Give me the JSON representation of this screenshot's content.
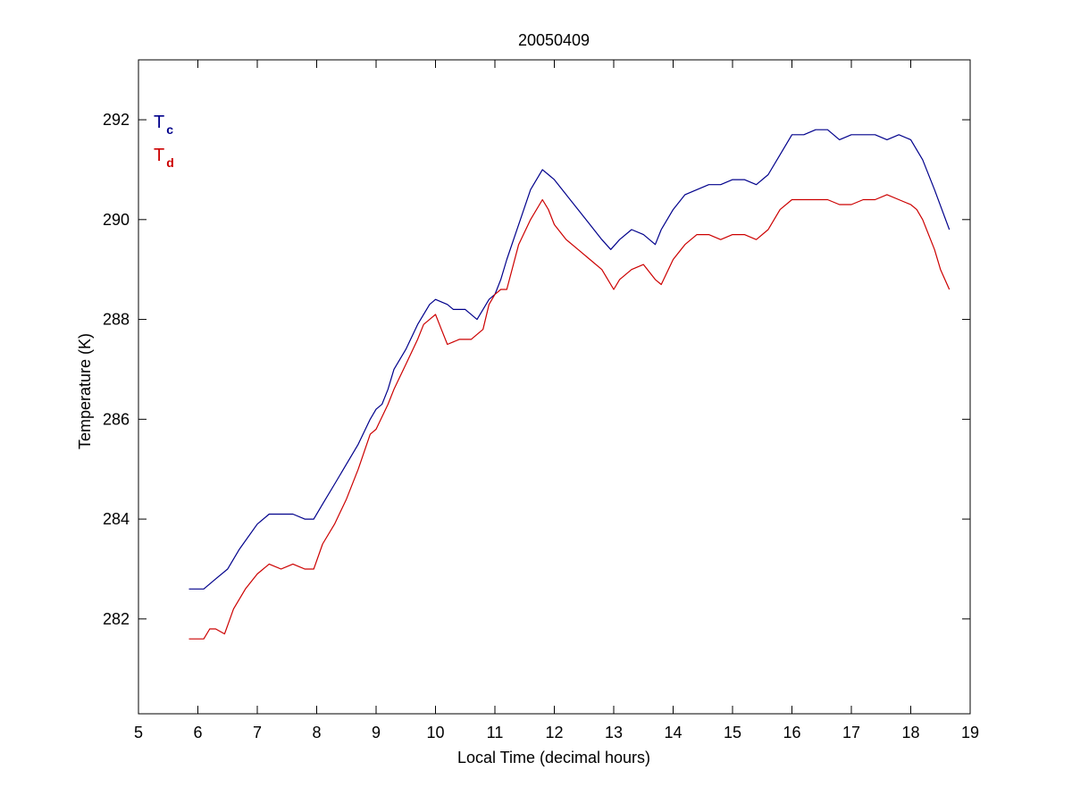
{
  "chart_data": {
    "type": "line",
    "title": "20050409",
    "xlabel": "Local Time (decimal hours)",
    "ylabel": "Temperature (K)",
    "xlim": [
      5,
      19
    ],
    "ylim": [
      280.1,
      293.2
    ],
    "xticks": [
      5,
      6,
      7,
      8,
      9,
      10,
      11,
      12,
      13,
      14,
      15,
      16,
      17,
      18,
      19
    ],
    "xtick_labels": [
      "5",
      "6",
      "7",
      "8",
      "9",
      "10",
      "11",
      "12",
      "13",
      "14",
      "15",
      "16",
      "17",
      "18",
      "19"
    ],
    "yticks": [
      282,
      284,
      286,
      288,
      290,
      292
    ],
    "ytick_labels": [
      "282",
      "284",
      "286",
      "288",
      "290",
      "292"
    ],
    "grid": false,
    "legend_position": "top-left",
    "colors": {
      "axes": "#000000",
      "Tc": "#00008b",
      "Td": "#cc0000"
    },
    "series": [
      {
        "name": "T",
        "subscript": "c",
        "color": "#00008b",
        "x": [
          5.85,
          6.0,
          6.1,
          6.3,
          6.5,
          6.7,
          7.0,
          7.2,
          7.4,
          7.6,
          7.8,
          7.95,
          8.1,
          8.3,
          8.5,
          8.7,
          8.9,
          9.0,
          9.1,
          9.2,
          9.3,
          9.5,
          9.7,
          9.9,
          10.0,
          10.2,
          10.3,
          10.5,
          10.7,
          10.8,
          10.9,
          11.0,
          11.1,
          11.2,
          11.4,
          11.6,
          11.8,
          11.9,
          12.0,
          12.2,
          12.4,
          12.6,
          12.8,
          12.95,
          13.1,
          13.3,
          13.5,
          13.7,
          13.8,
          14.0,
          14.2,
          14.4,
          14.6,
          14.8,
          15.0,
          15.2,
          15.4,
          15.6,
          15.8,
          16.0,
          16.2,
          16.4,
          16.6,
          16.8,
          17.0,
          17.2,
          17.4,
          17.6,
          17.8,
          18.0,
          18.2,
          18.4,
          18.65
        ],
        "values": [
          282.6,
          282.6,
          282.6,
          282.8,
          283.0,
          283.4,
          283.9,
          284.1,
          284.1,
          284.1,
          284.0,
          284.0,
          284.3,
          284.7,
          285.1,
          285.5,
          286.0,
          286.2,
          286.3,
          286.6,
          287.0,
          287.4,
          287.9,
          288.3,
          288.4,
          288.3,
          288.2,
          288.2,
          288.0,
          288.2,
          288.4,
          288.5,
          288.8,
          289.2,
          289.9,
          290.6,
          291.0,
          290.9,
          290.8,
          290.5,
          290.2,
          289.9,
          289.6,
          289.4,
          289.6,
          289.8,
          289.7,
          289.5,
          289.8,
          290.2,
          290.5,
          290.6,
          290.7,
          290.7,
          290.8,
          290.8,
          290.7,
          290.9,
          291.3,
          291.7,
          291.7,
          291.8,
          291.8,
          291.6,
          291.7,
          291.7,
          291.7,
          291.6,
          291.7,
          291.6,
          291.2,
          290.6,
          289.8
        ]
      },
      {
        "name": "T",
        "subscript": "d",
        "color": "#cc0000",
        "x": [
          5.85,
          6.0,
          6.1,
          6.2,
          6.3,
          6.45,
          6.6,
          6.8,
          7.0,
          7.2,
          7.4,
          7.6,
          7.8,
          7.95,
          8.1,
          8.3,
          8.5,
          8.7,
          8.9,
          9.0,
          9.2,
          9.3,
          9.5,
          9.7,
          9.8,
          9.9,
          10.0,
          10.1,
          10.2,
          10.4,
          10.6,
          10.8,
          10.9,
          11.0,
          11.1,
          11.2,
          11.4,
          11.6,
          11.8,
          11.9,
          12.0,
          12.2,
          12.4,
          12.6,
          12.8,
          12.9,
          13.0,
          13.1,
          13.3,
          13.5,
          13.7,
          13.8,
          14.0,
          14.2,
          14.4,
          14.6,
          14.8,
          15.0,
          15.2,
          15.4,
          15.6,
          15.8,
          16.0,
          16.2,
          16.4,
          16.6,
          16.8,
          17.0,
          17.2,
          17.4,
          17.6,
          17.8,
          18.0,
          18.1,
          18.2,
          18.4,
          18.5,
          18.65
        ],
        "values": [
          281.6,
          281.6,
          281.6,
          281.8,
          281.8,
          281.7,
          282.2,
          282.6,
          282.9,
          283.1,
          283.0,
          283.1,
          283.0,
          283.0,
          283.5,
          283.9,
          284.4,
          285.0,
          285.7,
          285.8,
          286.3,
          286.6,
          287.1,
          287.6,
          287.9,
          288.0,
          288.1,
          287.8,
          287.5,
          287.6,
          287.6,
          287.8,
          288.3,
          288.5,
          288.6,
          288.6,
          289.5,
          290.0,
          290.4,
          290.2,
          289.9,
          289.6,
          289.4,
          289.2,
          289.0,
          288.8,
          288.6,
          288.8,
          289.0,
          289.1,
          288.8,
          288.7,
          289.2,
          289.5,
          289.7,
          289.7,
          289.6,
          289.7,
          289.7,
          289.6,
          289.8,
          290.2,
          290.4,
          290.4,
          290.4,
          290.4,
          290.3,
          290.3,
          290.4,
          290.4,
          290.5,
          290.4,
          290.3,
          290.2,
          290.0,
          289.4,
          289.0,
          288.6
        ]
      }
    ]
  }
}
